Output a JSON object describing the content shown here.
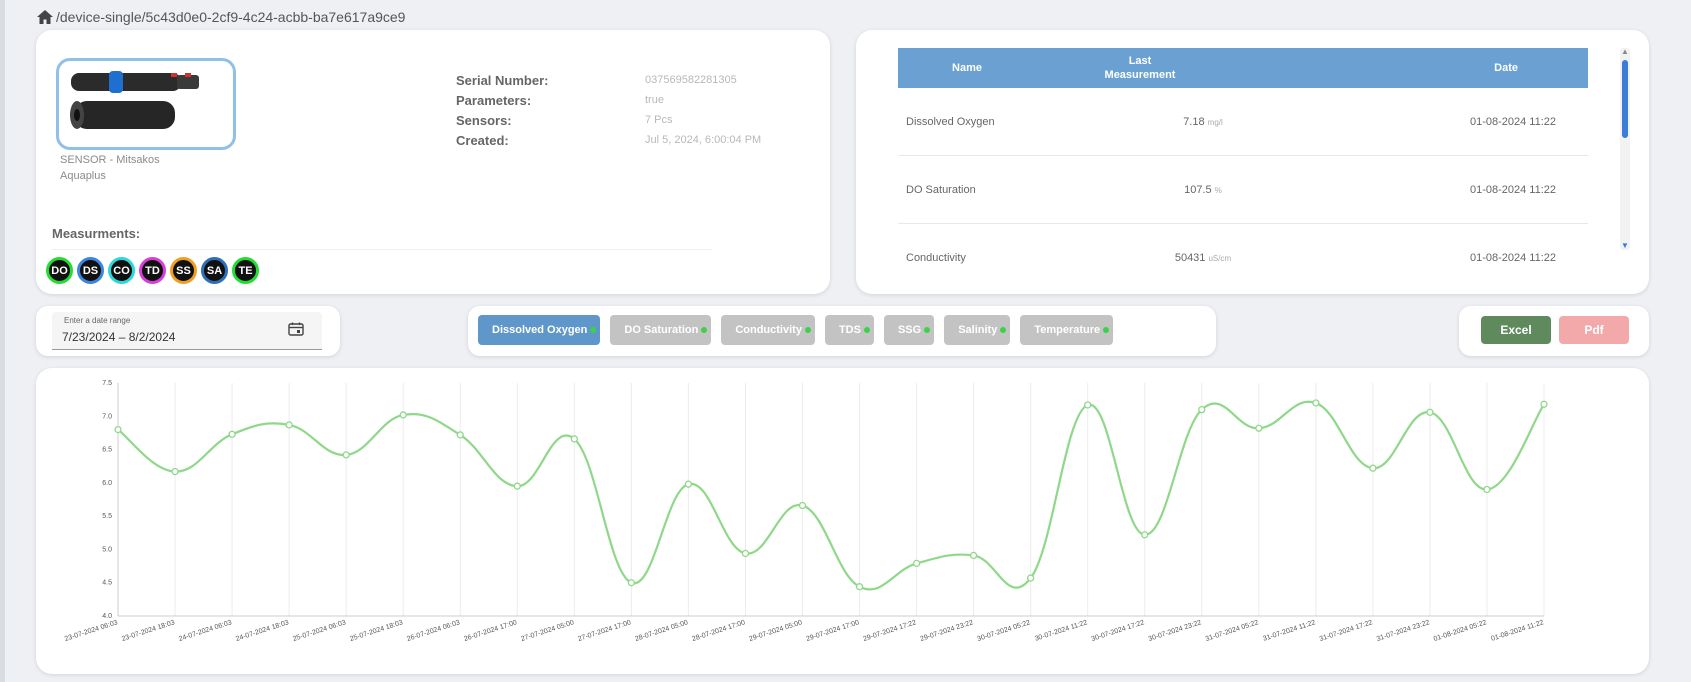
{
  "breadcrumb": {
    "icon": "home-icon",
    "path": "/device-single/5c43d0e0-2cf9-4c24-acbb-ba7e617a9ce9"
  },
  "device": {
    "image_icon": "sensor-device-icon",
    "caption_line1": "SENSOR - Mitsakos",
    "caption_line2": "Aquaplus",
    "info": [
      {
        "label": "Serial Number:",
        "value": "037569582281305"
      },
      {
        "label": "Parameters:",
        "value": "true"
      },
      {
        "label": "Sensors:",
        "value": "7 Pcs"
      },
      {
        "label": "Created:",
        "value": "Jul 5, 2024, 6:00:04 PM"
      }
    ],
    "measurements_label": "Measurments:",
    "badges": [
      {
        "code": "DO",
        "ring": "#22dd33"
      },
      {
        "code": "DS",
        "ring": "#3b86e0"
      },
      {
        "code": "CO",
        "ring": "#2fd8d8"
      },
      {
        "code": "TD",
        "ring": "#d83fd8"
      },
      {
        "code": "SS",
        "ring": "#f0a020"
      },
      {
        "code": "SA",
        "ring": "#2d6fb8"
      },
      {
        "code": "TE",
        "ring": "#22dd33"
      }
    ]
  },
  "table": {
    "headers": {
      "name": "Name",
      "measurement_line1": "Last",
      "measurement_line2": "Measurement",
      "date": "Date"
    },
    "rows": [
      {
        "name": "Dissolved Oxygen",
        "value": "7.18",
        "unit": "mg/l",
        "date": "01-08-2024 11:22"
      },
      {
        "name": "DO Saturation",
        "value": "107.5",
        "unit": "%",
        "date": "01-08-2024 11:22"
      },
      {
        "name": "Conductivity",
        "value": "50431",
        "unit": "uS/cm",
        "date": "01-08-2024 11:22"
      }
    ]
  },
  "date_range": {
    "label": "Enter a date range",
    "value": "7/23/2024 – 8/2/2024",
    "icon": "calendar-icon"
  },
  "parameters": [
    {
      "label": "Dissolved Oxygen",
      "active": true
    },
    {
      "label": "DO Saturation",
      "active": false
    },
    {
      "label": "Conductivity",
      "active": false
    },
    {
      "label": "TDS",
      "active": false
    },
    {
      "label": "SSG",
      "active": false
    },
    {
      "label": "Salinity",
      "active": false
    },
    {
      "label": "Temperature",
      "active": false
    }
  ],
  "export": {
    "excel": "Excel",
    "pdf": "Pdf"
  },
  "chart_data": {
    "type": "line",
    "series_color": "#8fd88a",
    "ylim": [
      4.0,
      7.5
    ],
    "yticks": [
      "4.0",
      "4.5",
      "5.0",
      "5.5",
      "6.0",
      "6.5",
      "7.0",
      "7.5"
    ],
    "grid": "vertical",
    "x": [
      "23-07-2024 06:03",
      "23-07-2024 18:03",
      "24-07-2024 06:03",
      "24-07-2024 18:03",
      "25-07-2024 06:03",
      "25-07-2024 18:03",
      "26-07-2024 06:03",
      "26-07-2024 17:00",
      "27-07-2024 05:00",
      "27-07-2024 17:00",
      "28-07-2024 05:00",
      "28-07-2024 17:00",
      "29-07-2024 05:00",
      "29-07-2024 17:00",
      "29-07-2024 17:22",
      "29-07-2024 23:22",
      "30-07-2024 05:22",
      "30-07-2024 11:22",
      "30-07-2024 17:22",
      "30-07-2024 23:22",
      "31-07-2024 05:22",
      "31-07-2024 11:22",
      "31-07-2024 17:22",
      "31-07-2024 23:22",
      "01-08-2024 05:22",
      "01-08-2024 11:22"
    ],
    "values": [
      6.8,
      6.17,
      6.73,
      6.87,
      6.42,
      7.02,
      6.72,
      5.95,
      6.66,
      4.5,
      5.98,
      4.94,
      5.66,
      4.44,
      4.79,
      4.91,
      4.57,
      7.17,
      5.22,
      7.1,
      6.82,
      7.2,
      6.22,
      7.06,
      5.9,
      7.18
    ]
  }
}
